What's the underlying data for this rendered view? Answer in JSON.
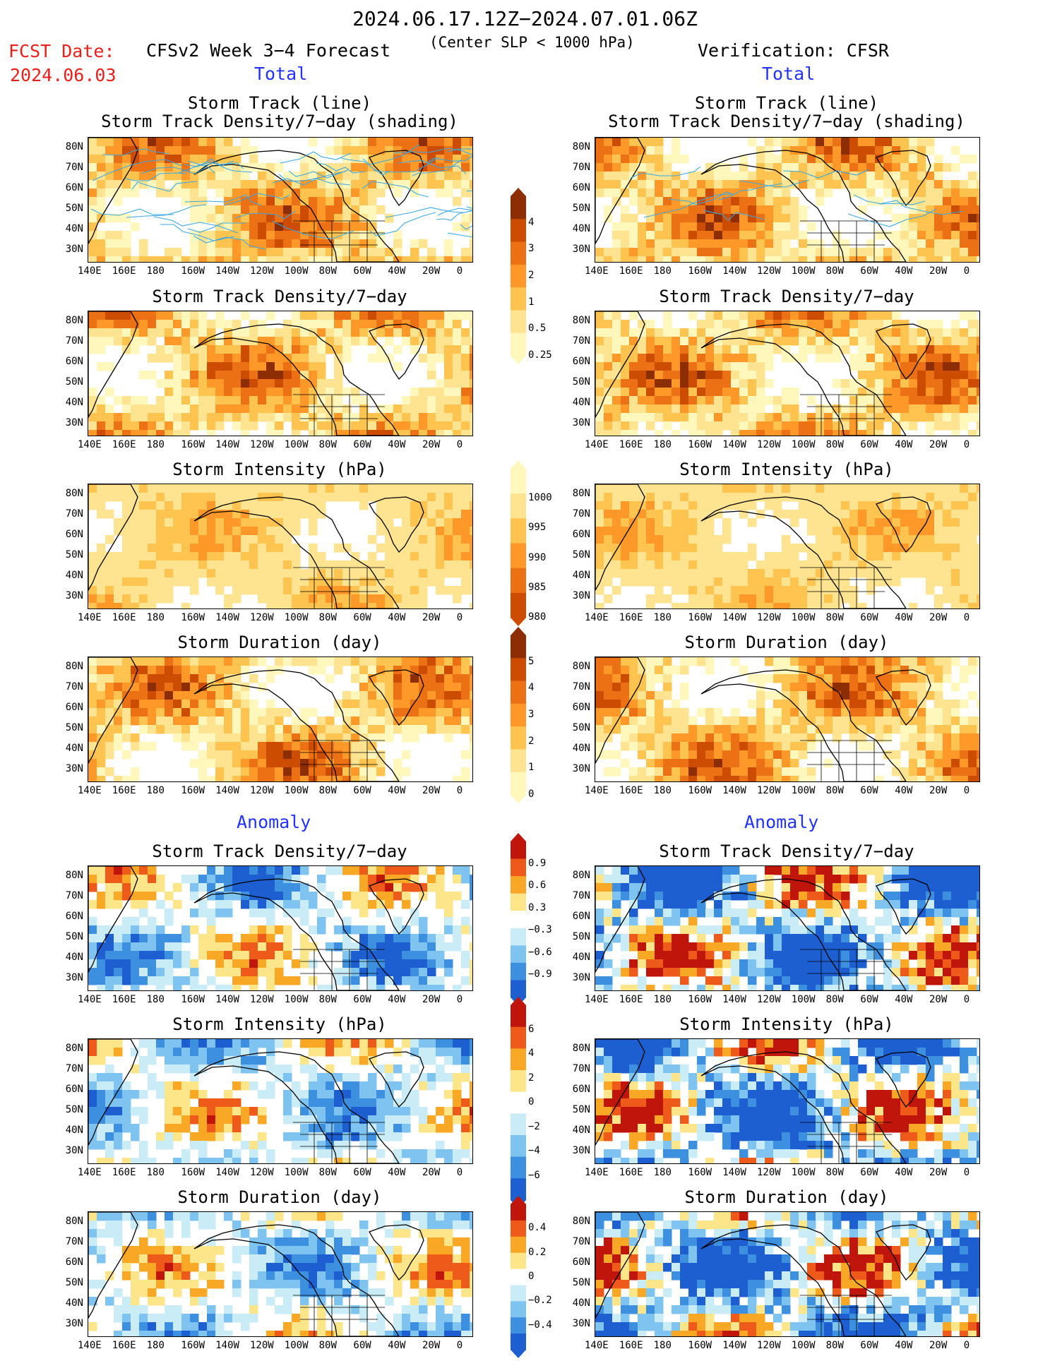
{
  "header": {
    "date_range": "2024.06.17.12Z−2024.07.01.06Z",
    "center_note": "(Center SLP < 1000 hPa)",
    "model_title": "CFSv2 Week 3−4 Forecast",
    "verification": "Verification: CFSR",
    "fcst_label": "FCST Date:",
    "fcst_date": "2024.06.03"
  },
  "sections": {
    "total": "Total",
    "anomaly": "Anomaly"
  },
  "panel_titles": {
    "track_line": "Storm Track (line)",
    "track_density_shading": "Storm Track Density/7−day (shading)",
    "track_density": "Storm Track Density/7−day",
    "intensity": "Storm Intensity (hPa)",
    "duration": "Storm Duration (day)"
  },
  "map_axes": {
    "lat_labels": [
      "80N",
      "70N",
      "60N",
      "50N",
      "40N",
      "30N"
    ],
    "lon_labels": [
      "140E",
      "160E",
      "180",
      "160W",
      "140W",
      "120W",
      "100W",
      "80W",
      "60W",
      "40W",
      "20W",
      "0"
    ]
  },
  "colorbars": {
    "density": [
      "4",
      "3",
      "2",
      "1",
      "0.5",
      "0.25"
    ],
    "intensity": [
      "1000",
      "995",
      "990",
      "985",
      "980"
    ],
    "duration": [
      "5",
      "4",
      "3",
      "2",
      "1",
      "0"
    ],
    "density_anom": [
      "0.9",
      "0.6",
      "0.3",
      "−0.3",
      "−0.6",
      "−0.9"
    ],
    "intensity_anom": [
      "6",
      "4",
      "2",
      "0",
      "−2",
      "−4",
      "−6"
    ],
    "duration_anom": [
      "0.4",
      "0.2",
      "0",
      "−0.2",
      "−0.4"
    ]
  },
  "colors": {
    "title_red": "#e8201a",
    "section_blue": "#2233ff",
    "seq": [
      "#fff7bc",
      "#fee391",
      "#fec44f",
      "#fe9929",
      "#ec7014",
      "#cc4c02",
      "#8c2d04"
    ],
    "div_warm": [
      "#fde68a",
      "#f9a825",
      "#ee5a1a",
      "#c0150a"
    ],
    "div_cool": [
      "#c9ecf7",
      "#7fc3f0",
      "#3d8fe0",
      "#1d5fd0"
    ],
    "track_line": "#3aa8e0"
  }
}
